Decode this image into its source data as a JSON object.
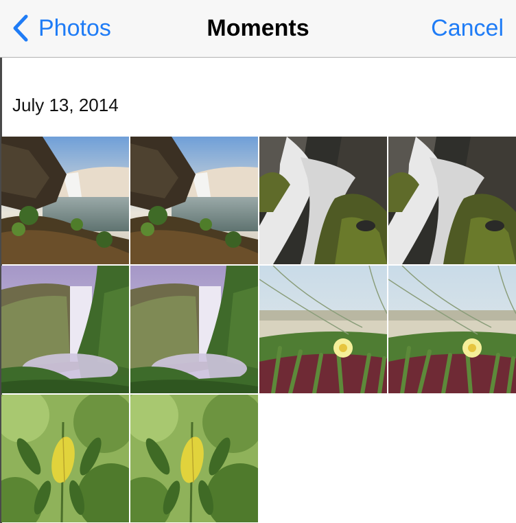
{
  "navbar": {
    "back_label": "Photos",
    "title": "Moments",
    "cancel_label": "Cancel",
    "accent_color": "#1f7cf6"
  },
  "moment": {
    "date": "July 13, 2014",
    "photos": [
      {
        "subject": "waterfall-cliff-sunset"
      },
      {
        "subject": "waterfall-cliff-sunset"
      },
      {
        "subject": "waterfall-long-exposure-rocks"
      },
      {
        "subject": "waterfall-long-exposure-rocks"
      },
      {
        "subject": "waterfall-valley-purple"
      },
      {
        "subject": "waterfall-valley-purple"
      },
      {
        "subject": "yellow-flower-grass"
      },
      {
        "subject": "yellow-flower-grass"
      },
      {
        "subject": "green-leaves-yellow-leaf"
      },
      {
        "subject": "green-leaves-yellow-leaf"
      }
    ]
  }
}
